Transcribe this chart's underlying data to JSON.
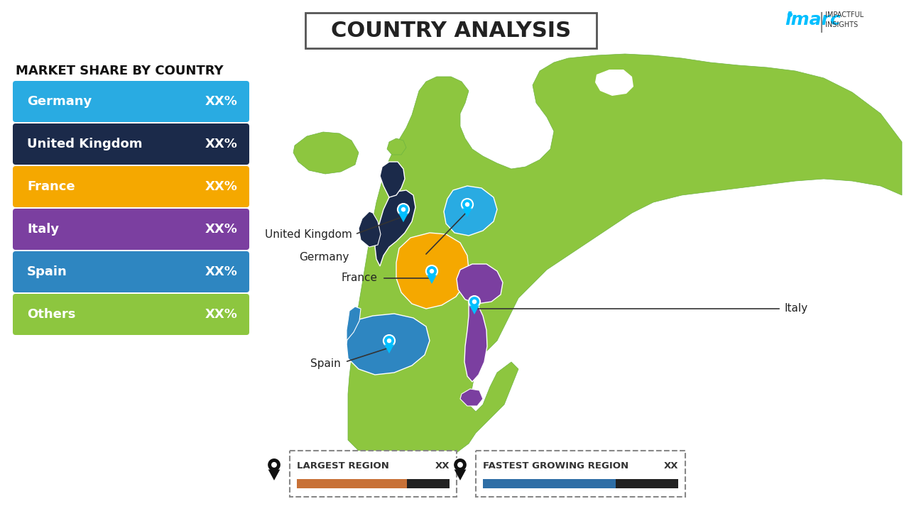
{
  "title": "COUNTRY ANALYSIS",
  "background_color": "#FFFFFF",
  "sidebar_title": "MARKET SHARE BY COUNTRY",
  "countries": [
    "Germany",
    "United Kingdom",
    "France",
    "Italy",
    "Spain",
    "Others"
  ],
  "values": [
    "XX%",
    "XX%",
    "XX%",
    "XX%",
    "XX%",
    "XX%"
  ],
  "bar_colors": [
    "#29ABE2",
    "#1B2A4A",
    "#F5A800",
    "#7B3FA0",
    "#2E86C1",
    "#8DC63F"
  ],
  "legend_largest": "LARGEST REGION",
  "legend_largest_value": "XX",
  "legend_fastest": "FASTEST GROWING REGION",
  "legend_fastest_value": "XX",
  "legend_bar_color1": "#C87137",
  "legend_bar_color2": "#2E6EA6",
  "map_bg_color": "#8DC63F",
  "map_light_color": "#A8D84A",
  "germany_color": "#29ABE2",
  "uk_color": "#1B2A4A",
  "france_color": "#F5A800",
  "italy_color": "#7B3FA0",
  "spain_color": "#2E86C1",
  "water_color": "#FFFFFF",
  "pin_color": "#00BFFF"
}
